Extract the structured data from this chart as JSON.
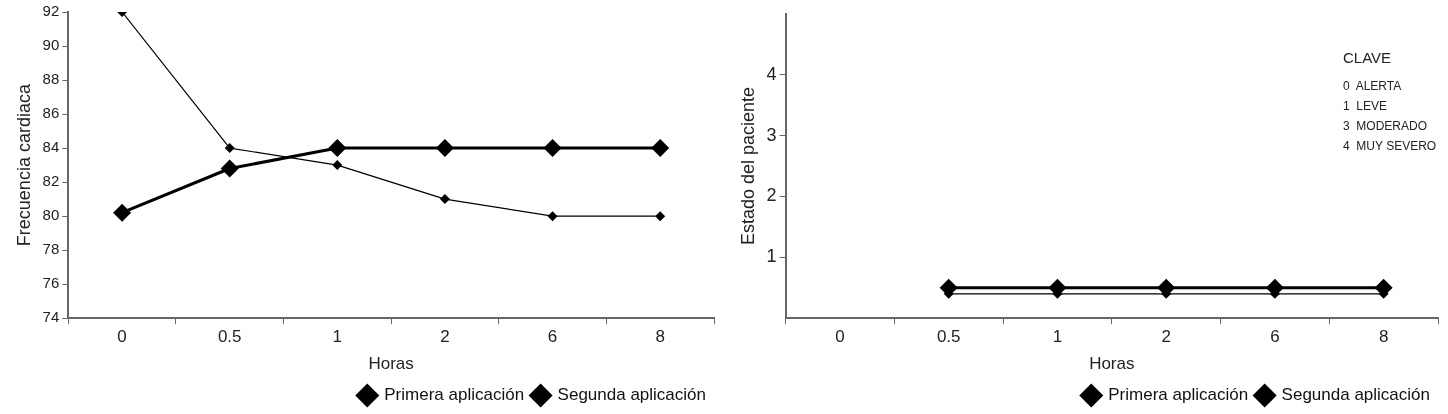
{
  "chart_data": [
    {
      "type": "line",
      "xlabel": "Horas",
      "ylabel": "Frecuencia cardiaca",
      "categories": [
        "0",
        "0.5",
        "1",
        "2",
        "6",
        "8"
      ],
      "ylim": [
        74,
        92
      ],
      "yticks": [
        74,
        76,
        78,
        80,
        82,
        84,
        86,
        88,
        90,
        92
      ],
      "grid": false,
      "legend": "bottom right",
      "marker": "diamond",
      "series": [
        {
          "name": "Primera aplicación",
          "color": "#000000",
          "values": [
            92,
            84,
            83,
            81,
            80,
            80
          ]
        },
        {
          "name": "Segunda aplicación",
          "color": "#000000",
          "values": [
            80.2,
            82.8,
            84,
            84,
            84,
            84
          ]
        }
      ]
    },
    {
      "type": "line",
      "xlabel": "Horas",
      "ylabel": "Estado del paciente",
      "categories": [
        "0",
        "0.5",
        "1",
        "2",
        "6",
        "8"
      ],
      "ylim": [
        0,
        5
      ],
      "yticks": [
        1,
        2,
        3,
        4
      ],
      "grid": false,
      "legend": "bottom right",
      "marker": "diamond",
      "annotations": [
        "CLAVE",
        "0  ALERTA",
        "1  LEVE",
        "3  MODERADO",
        "4  MUY SEVERO"
      ],
      "series": [
        {
          "name": "Primera aplicación",
          "color": "#000000",
          "values": [
            null,
            0.4,
            0.4,
            0.4,
            0.4,
            0.4
          ]
        },
        {
          "name": "Segunda aplicación",
          "color": "#000000",
          "values": [
            null,
            0.5,
            0.5,
            0.5,
            0.5,
            0.5
          ]
        }
      ]
    }
  ]
}
